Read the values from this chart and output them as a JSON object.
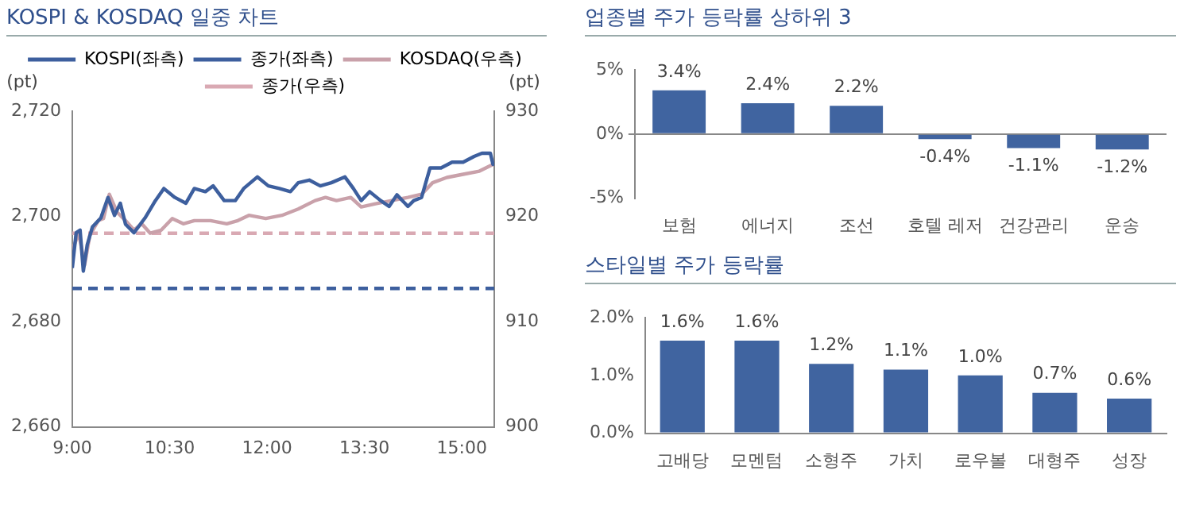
{
  "chart_data": [
    {
      "type": "line",
      "title": "KOSPI & KOSDAQ 일중 차트",
      "ylabel": "(pt)",
      "y2label": "(pt)",
      "legend": "top",
      "line_style": "solid",
      "marker": "none",
      "xlim": [
        9,
        15.5
      ],
      "xticks": [
        {
          "value": 9,
          "label": "9:00"
        },
        {
          "value": 10.5,
          "label": "10:30"
        },
        {
          "value": 12,
          "label": "12:00"
        },
        {
          "value": 13.5,
          "label": "13:30"
        },
        {
          "value": 15,
          "label": "15:00"
        }
      ],
      "ylim": [
        2660,
        2720
      ],
      "yticks": [
        {
          "value": 2660,
          "label": "2,660"
        },
        {
          "value": 2680,
          "label": "2,680"
        },
        {
          "value": 2700,
          "label": "2,700"
        },
        {
          "value": 2720,
          "label": "2,720"
        }
      ],
      "y2lim": [
        900,
        930
      ],
      "y2ticks": [
        900,
        910,
        920,
        930
      ],
      "x": [
        9.0,
        9.06,
        9.12,
        9.17,
        9.23,
        9.31,
        9.44,
        9.55,
        9.65,
        9.74,
        9.82,
        9.95,
        10.12,
        10.28,
        10.41,
        10.58,
        10.75,
        10.88,
        11.05,
        11.17,
        11.34,
        11.51,
        11.64,
        11.85,
        12.02,
        12.19,
        12.36,
        12.48,
        12.65,
        12.82,
        12.99,
        13.2,
        13.33,
        13.45,
        13.58,
        13.75,
        13.88,
        14.0,
        14.17,
        14.26,
        14.38,
        14.51,
        14.68,
        14.85,
        15.02,
        15.19,
        15.31,
        15.44,
        15.48,
        15.5
      ],
      "series": [
        {
          "name": "KOSPI(좌측)",
          "color": "#3d5f9e",
          "axis": "y",
          "values": [
            2690.2,
            2696.9,
            2697.4,
            2689.6,
            2694.6,
            2698.0,
            2699.7,
            2703.6,
            2700.2,
            2702.5,
            2698.5,
            2696.9,
            2699.7,
            2703.0,
            2705.3,
            2703.6,
            2702.5,
            2705.3,
            2704.7,
            2705.8,
            2703.0,
            2703.0,
            2705.3,
            2707.5,
            2705.8,
            2705.3,
            2704.7,
            2706.4,
            2706.9,
            2705.8,
            2706.4,
            2707.5,
            2705.3,
            2703.0,
            2704.7,
            2703.0,
            2701.9,
            2704.1,
            2701.9,
            2703.0,
            2703.6,
            2709.2,
            2709.2,
            2710.3,
            2710.3,
            2711.4,
            2712.0,
            2712.0,
            2709.9,
            2710.0
          ]
        },
        {
          "name": "KOSDAQ(우측)",
          "color": "#c9a1aa",
          "axis": "y2",
          "x": [
            9.0,
            9.1,
            9.19,
            9.27,
            9.4,
            9.48,
            9.57,
            9.69,
            9.82,
            9.95,
            10.07,
            10.2,
            10.37,
            10.54,
            10.71,
            10.88,
            11.13,
            11.38,
            11.55,
            11.72,
            11.98,
            12.23,
            12.48,
            12.74,
            12.9,
            13.07,
            13.29,
            13.45,
            13.67,
            13.92,
            14.17,
            14.38,
            14.55,
            14.77,
            15.02,
            15.27,
            15.5
          ],
          "values": [
            916.8,
            918.4,
            915.4,
            918.2,
            919.6,
            919.8,
            922.1,
            920.4,
            919.6,
            918.7,
            919.3,
            918.4,
            918.7,
            919.8,
            919.3,
            919.6,
            919.6,
            919.3,
            919.6,
            920.1,
            919.8,
            920.1,
            920.7,
            921.5,
            921.8,
            921.5,
            921.8,
            920.9,
            921.2,
            921.5,
            921.8,
            922.1,
            923.2,
            923.7,
            924.0,
            924.3,
            925.0
          ]
        }
      ],
      "ref_lines": [
        {
          "axis": "y",
          "value": 2686.3,
          "label": "종가(좌측)",
          "color": "#3d5f9e",
          "line_style": "dashed"
        },
        {
          "axis": "y2",
          "value": 918.4,
          "label": "종가(우측)",
          "color": "#d9a9b3",
          "line_style": "dashed"
        }
      ]
    },
    {
      "type": "bar",
      "title": "업종별 주가 등락률 상하위 3",
      "color": "#4064a0",
      "categories": [
        "보험",
        "에너지",
        "조선",
        "호텔 레저",
        "건강관리",
        "운송"
      ],
      "values": [
        3.4,
        2.4,
        2.2,
        -0.4,
        -1.1,
        -1.2
      ],
      "value_labels": [
        "3.4%",
        "2.4%",
        "2.2%",
        "-0.4%",
        "-1.1%",
        "-1.2%"
      ],
      "ylim": [
        -5,
        5
      ],
      "yticks": [
        {
          "value": -5,
          "label": "-5%"
        },
        {
          "value": 0,
          "label": "0%"
        },
        {
          "value": 5,
          "label": "5%"
        }
      ]
    },
    {
      "type": "bar",
      "title": "스타일별 주가 등락률",
      "color": "#4064a0",
      "categories": [
        "고배당",
        "모멘텀",
        "소형주",
        "가치",
        "로우볼",
        "대형주",
        "성장"
      ],
      "values": [
        1.6,
        1.6,
        1.2,
        1.1,
        1.0,
        0.7,
        0.6
      ],
      "value_labels": [
        "1.6%",
        "1.6%",
        "1.2%",
        "1.1%",
        "1.0%",
        "0.7%",
        "0.6%"
      ],
      "ylim": [
        0,
        2
      ],
      "yticks": [
        {
          "value": 0,
          "label": "0.0%"
        },
        {
          "value": 1,
          "label": "1.0%"
        },
        {
          "value": 2,
          "label": "2.0%"
        }
      ]
    }
  ]
}
